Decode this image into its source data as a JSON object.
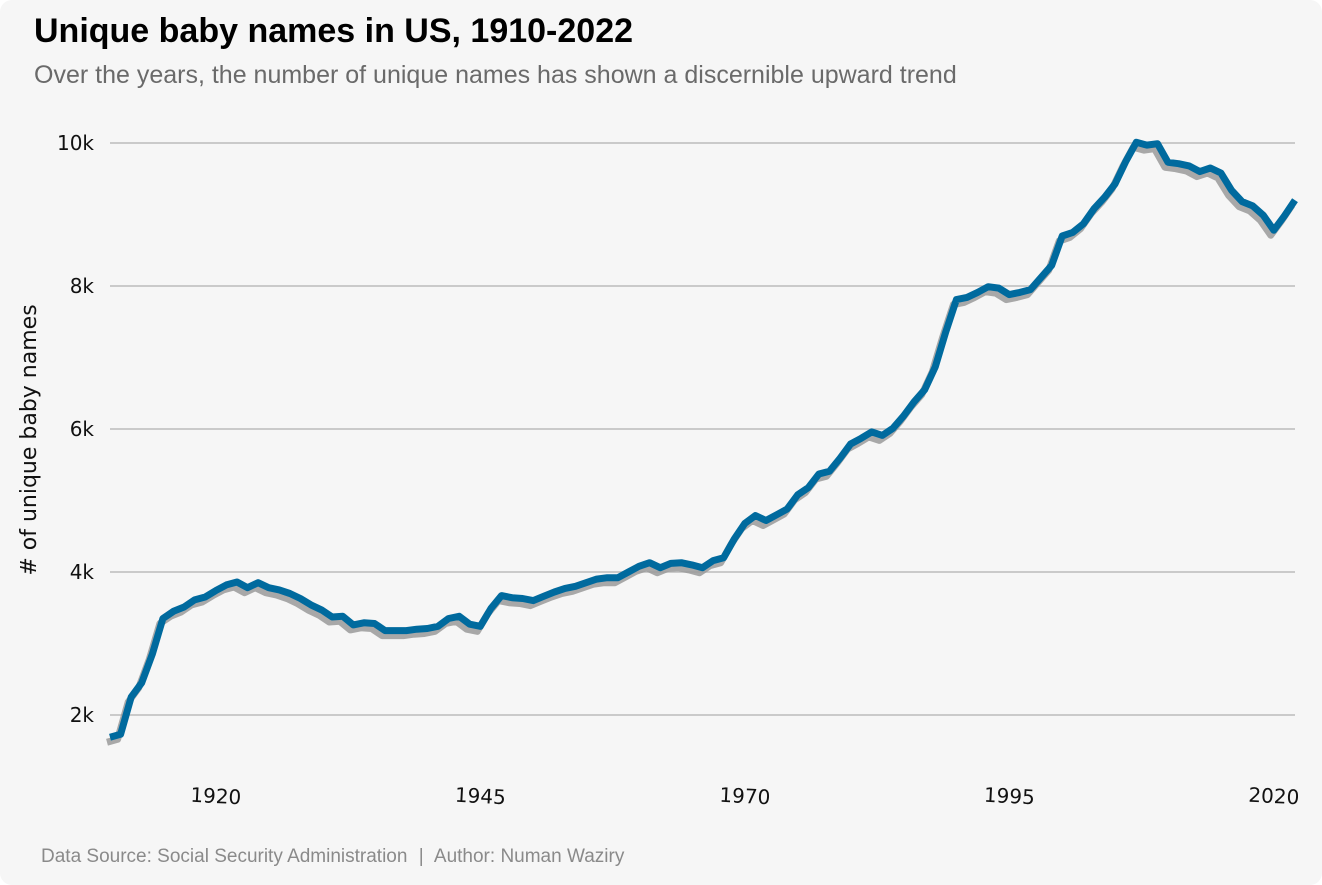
{
  "header": {
    "title": "Unique baby names in US, 1910-2022",
    "subtitle": "Over the years, the number of unique names has shown a discernible upward trend"
  },
  "footer": {
    "source": "Data Source: Social Security Administration",
    "separator": "|",
    "author": "Author: Numan Waziry"
  },
  "colors": {
    "line": "#006a9e",
    "shadow": "#9a9a9a",
    "grid": "#bcbcbc",
    "background": "#f6f6f6"
  },
  "chart_data": {
    "type": "line",
    "title": "Unique baby names in US, 1910-2022",
    "subtitle": "Over the years, the number of unique names has shown a discernible upward trend",
    "xlabel": "",
    "ylabel": "# of unique baby names",
    "xlim": [
      1910,
      2022
    ],
    "ylim": [
      1200,
      10400
    ],
    "grid": "horizontal",
    "yticks": [
      {
        "value": 2000,
        "label": "2k"
      },
      {
        "value": 4000,
        "label": "4k"
      },
      {
        "value": 6000,
        "label": "6k"
      },
      {
        "value": 8000,
        "label": "8k"
      },
      {
        "value": 10000,
        "label": "10k"
      }
    ],
    "xticks": [
      {
        "value": 1920,
        "label": "1920"
      },
      {
        "value": 1945,
        "label": "1945"
      },
      {
        "value": 1970,
        "label": "1970"
      },
      {
        "value": 1995,
        "label": "1995"
      },
      {
        "value": 2020,
        "label": "2020"
      }
    ],
    "series": [
      {
        "x": [
          1910,
          1911,
          1912,
          1913,
          1914,
          1915,
          1916,
          1917,
          1918,
          1919,
          1920,
          1921,
          1922,
          1923,
          1924,
          1925,
          1926,
          1927,
          1928,
          1929,
          1930,
          1931,
          1932,
          1933,
          1934,
          1935,
          1936,
          1937,
          1938,
          1939,
          1940,
          1941,
          1942,
          1943,
          1944,
          1945,
          1946,
          1947,
          1948,
          1949,
          1950,
          1951,
          1952,
          1953,
          1954,
          1955,
          1956,
          1957,
          1958,
          1959,
          1960,
          1961,
          1962,
          1963,
          1964,
          1965,
          1966,
          1967,
          1968,
          1969,
          1970,
          1971,
          1972,
          1973,
          1974,
          1975,
          1976,
          1977,
          1978,
          1979,
          1980,
          1981,
          1982,
          1983,
          1984,
          1985,
          1986,
          1987,
          1988,
          1989,
          1990,
          1991,
          1992,
          1993,
          1994,
          1995,
          1996,
          1997,
          1998,
          1999,
          2000,
          2001,
          2002,
          2003,
          2004,
          2005,
          2006,
          2007,
          2008,
          2009,
          2010,
          2011,
          2012,
          2013,
          2014,
          2015,
          2016,
          2017,
          2018,
          2019,
          2020,
          2021,
          2022
        ],
        "values": [
          1690,
          1730,
          2250,
          2450,
          2850,
          3350,
          3450,
          3510,
          3610,
          3650,
          3740,
          3820,
          3860,
          3780,
          3850,
          3780,
          3750,
          3700,
          3630,
          3540,
          3470,
          3370,
          3380,
          3260,
          3290,
          3280,
          3180,
          3180,
          3180,
          3200,
          3210,
          3240,
          3350,
          3380,
          3270,
          3240,
          3490,
          3670,
          3640,
          3630,
          3600,
          3660,
          3720,
          3770,
          3800,
          3850,
          3900,
          3920,
          3920,
          4000,
          4080,
          4130,
          4060,
          4120,
          4130,
          4100,
          4060,
          4160,
          4200,
          4460,
          4680,
          4790,
          4720,
          4800,
          4880,
          5080,
          5180,
          5370,
          5410,
          5590,
          5790,
          5870,
          5960,
          5910,
          6010,
          6180,
          6380,
          6550,
          6870,
          7360,
          7810,
          7840,
          7910,
          7990,
          7970,
          7880,
          7910,
          7950,
          8120,
          8290,
          8700,
          8750,
          8870,
          9080,
          9240,
          9430,
          9740,
          10010,
          9970,
          9990,
          9730,
          9710,
          9680,
          9600,
          9650,
          9580,
          9340,
          9180,
          9120,
          8990,
          8780,
          8980,
          9200
        ]
      }
    ]
  }
}
